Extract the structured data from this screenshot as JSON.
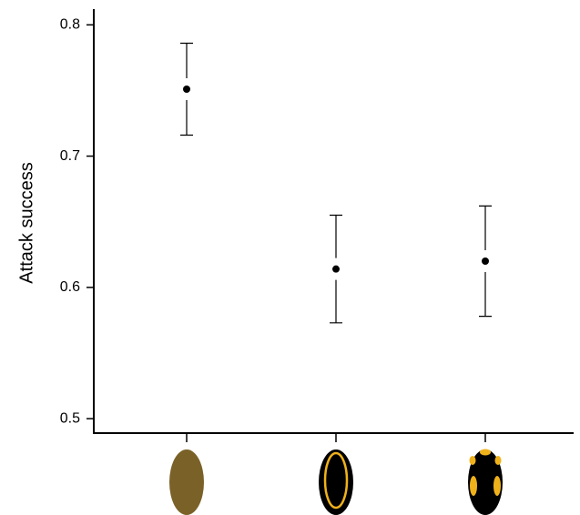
{
  "chart_data": {
    "type": "errorbar",
    "y_label": "Attack success",
    "categories": [
      null,
      null,
      null
    ],
    "values": [
      0.751,
      0.614,
      0.62
    ],
    "errors": [
      0.035,
      0.041,
      0.042
    ],
    "color": "#000000",
    "ylim": [
      0.489,
      0.812
    ],
    "yticks": [
      0.5,
      0.6,
      0.7,
      0.8
    ],
    "grid": false
  }
}
